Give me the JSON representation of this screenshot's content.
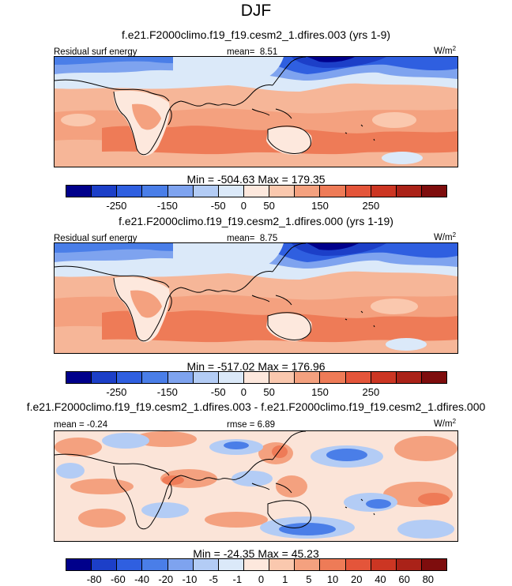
{
  "season": "DJF",
  "variable_label": "Residual surf energy",
  "unit_base": "W/m",
  "unit_exp": "2",
  "panels": [
    {
      "title": "f.e21.F2000climo.f19_f19.cesm2_1.dfires.003 (yrs 1-9)",
      "stat_label": "mean=",
      "stat_value": "8.51",
      "min_max": "Min = -504.63 Max = 179.35"
    },
    {
      "title": "f.e21.F2000climo.f19_f19.cesm2_1.dfires.000 (yrs 1-19)",
      "stat_label": "mean=",
      "stat_value": "8.75",
      "min_max": "Min = -517.02 Max = 176.96"
    },
    {
      "title": "f.e21.F2000climo.f19_f19.cesm2_1.dfires.003 - f.e21.F2000climo.f19_f19.cesm2_1.dfires.000",
      "mean_text": "mean =  -0.24",
      "rmse_text": "rmse =  6.89",
      "min_max": "Min = -24.35 Max =  45.23"
    }
  ],
  "colorbar_colors": [
    "#00008b",
    "#1c3fc8",
    "#2f5fe0",
    "#4a7ee8",
    "#7ea3ef",
    "#b3ccf5",
    "#dbe9f9",
    "#fde8dd",
    "#fac8ae",
    "#f4a17f",
    "#ee7b57",
    "#e4553a",
    "#cc3623",
    "#aa2218",
    "#7e0d0d"
  ],
  "colorbar_main_ticks": [
    "-250",
    "-150",
    "-50",
    "0",
    "50",
    "150",
    "250"
  ],
  "colorbar_diff_ticks": [
    "-80",
    "-60",
    "-40",
    "-20",
    "-10",
    "-5",
    "-1",
    "0",
    "1",
    "5",
    "10",
    "20",
    "40",
    "60",
    "80"
  ]
}
